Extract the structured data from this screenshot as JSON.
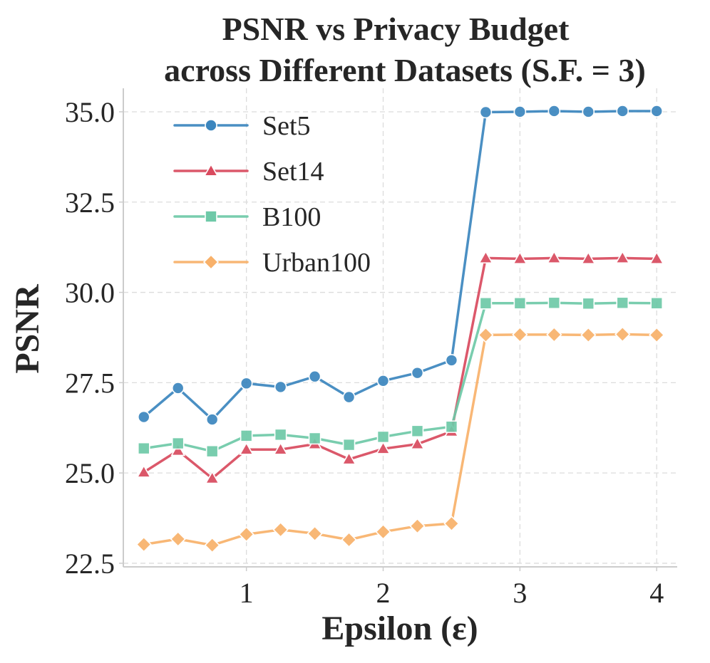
{
  "chart_data": {
    "type": "line",
    "title": [
      "PSNR vs Privacy Budget",
      "across Different Datasets (S.F. = 3)"
    ],
    "xlabel": "Epsilon (ε)",
    "ylabel": "PSNR",
    "xlim": [
      0.1,
      4.15
    ],
    "ylim": [
      22.4,
      35.65
    ],
    "xticks": [
      1,
      2,
      3,
      4
    ],
    "xtick_labels": [
      "1",
      "2",
      "3",
      "4"
    ],
    "yticks": [
      22.5,
      25.0,
      27.5,
      30.0,
      32.5,
      35.0
    ],
    "ytick_labels": [
      "22.5",
      "25.0",
      "27.5",
      "30.0",
      "32.5",
      "35.0"
    ],
    "grid": true,
    "legend_position": "top-left",
    "x": [
      0.25,
      0.5,
      0.75,
      1.0,
      1.25,
      1.5,
      1.75,
      2.0,
      2.25,
      2.5,
      2.75,
      3.0,
      3.25,
      3.5,
      3.75,
      4.0
    ],
    "series": [
      {
        "name": "Set5",
        "color": "#3b86be",
        "marker": "circle",
        "values": [
          26.55,
          27.35,
          26.48,
          27.48,
          27.38,
          27.67,
          27.1,
          27.55,
          27.77,
          28.12,
          34.99,
          35.0,
          35.02,
          35.0,
          35.02,
          35.02
        ]
      },
      {
        "name": "Set14",
        "color": "#d94a5e",
        "marker": "triangle",
        "values": [
          25.02,
          25.62,
          24.85,
          25.65,
          25.65,
          25.8,
          25.38,
          25.67,
          25.8,
          26.15,
          30.95,
          30.93,
          30.95,
          30.93,
          30.95,
          30.93
        ]
      },
      {
        "name": "B100",
        "color": "#6ec9a8",
        "marker": "square",
        "values": [
          25.68,
          25.82,
          25.6,
          26.03,
          26.06,
          25.96,
          25.78,
          26.0,
          26.16,
          26.28,
          29.7,
          29.7,
          29.71,
          29.69,
          29.71,
          29.7
        ]
      },
      {
        "name": "Urban100",
        "color": "#f8b16a",
        "marker": "diamond",
        "values": [
          23.02,
          23.17,
          23.0,
          23.3,
          23.43,
          23.32,
          23.15,
          23.37,
          23.53,
          23.6,
          28.82,
          28.83,
          28.83,
          28.82,
          28.84,
          28.82
        ]
      }
    ]
  }
}
